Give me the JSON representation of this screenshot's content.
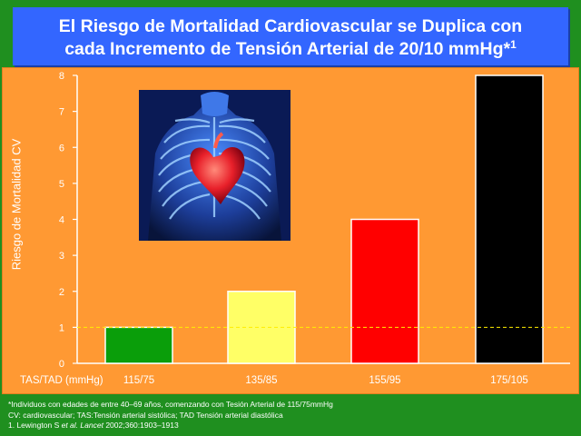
{
  "slide": {
    "title_line1": "El Riesgo de Mortalidad Cardiovascular se Duplica con",
    "title_line2": "cada Incremento de Tensión Arterial de 20/10 mmHg*",
    "title_superscript": "1",
    "colors": {
      "background": "#1f8f1f",
      "title_box": "#3366ff",
      "plot_panel": "#ff9933",
      "reference_line": "#ffee00"
    }
  },
  "chart_data": {
    "type": "bar",
    "categories": [
      "115/75",
      "135/85",
      "155/95",
      "175/105"
    ],
    "values": [
      1,
      2,
      4,
      8
    ],
    "bar_colors": [
      "#0a9e0a",
      "#ffff66",
      "#ff0000",
      "#000000"
    ],
    "xlabel": "TAS/TAD (mmHg)",
    "ylabel": "Riesgo de Mortalidad CV",
    "ylim": [
      0,
      8
    ],
    "yticks": [
      "0",
      "1",
      "2",
      "3",
      "4",
      "5",
      "6",
      "7",
      "8"
    ],
    "reference_line_y": 1,
    "grid": false,
    "legend": "none"
  },
  "footnotes": {
    "line1": "*Individuos con edades de entre 40–69 años, comenzando con Tesión Arterial de 115/75mmHg",
    "line2": "CV: cardiovascular; TAS:Tensión arterial sistólica; TAD Tensión arterial diastólica",
    "line3_prefix": "1. Lewington S ",
    "line3_etal": "et al.",
    "line3_journal": "Lancet",
    "line3_suffix": " 2002;360:1903–1913"
  },
  "image": {
    "subject": "x-ray-chest-heart-icon"
  }
}
